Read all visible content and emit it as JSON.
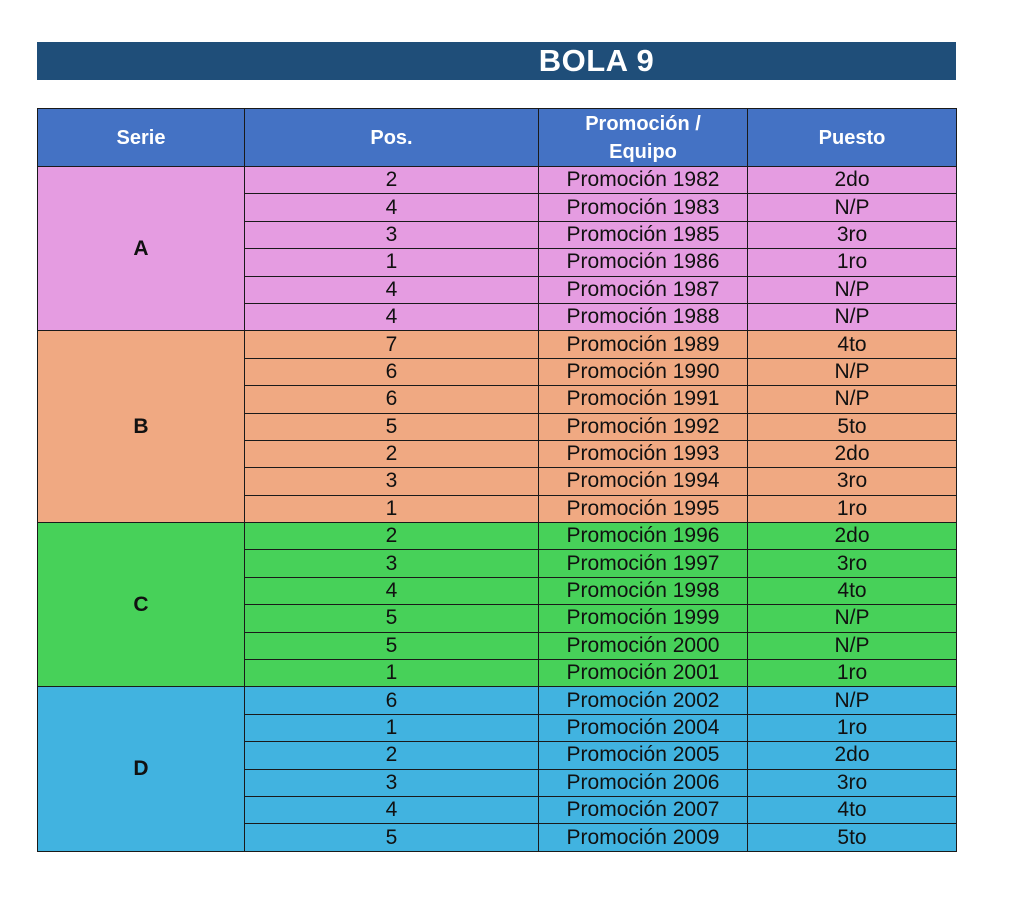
{
  "title": "BOLA 9",
  "headers": {
    "serie": "Serie",
    "pos": "Pos.",
    "promocion_line1": "Promoción /",
    "promocion_line2": "Equipo",
    "puesto": "Puesto"
  },
  "colors": {
    "title_bar": "#1f4e79",
    "header": "#4472c4",
    "serie_A": "#e59ce1",
    "serie_B": "#f0a982",
    "serie_C": "#47d159",
    "serie_D": "#41b3e0"
  },
  "groups": [
    {
      "serie": "A",
      "rows": [
        {
          "pos": "2",
          "promocion": "Promoción 1982",
          "puesto": "2do"
        },
        {
          "pos": "4",
          "promocion": "Promoción 1983",
          "puesto": "N/P"
        },
        {
          "pos": "3",
          "promocion": "Promoción 1985",
          "puesto": "3ro"
        },
        {
          "pos": "1",
          "promocion": "Promoción 1986",
          "puesto": "1ro"
        },
        {
          "pos": "4",
          "promocion": "Promoción 1987",
          "puesto": "N/P"
        },
        {
          "pos": "4",
          "promocion": "Promoción 1988",
          "puesto": "N/P"
        }
      ]
    },
    {
      "serie": "B",
      "rows": [
        {
          "pos": "7",
          "promocion": "Promoción 1989",
          "puesto": "4to"
        },
        {
          "pos": "6",
          "promocion": "Promoción 1990",
          "puesto": "N/P"
        },
        {
          "pos": "6",
          "promocion": "Promoción 1991",
          "puesto": "N/P"
        },
        {
          "pos": "5",
          "promocion": "Promoción 1992",
          "puesto": "5to"
        },
        {
          "pos": "2",
          "promocion": "Promoción 1993",
          "puesto": "2do"
        },
        {
          "pos": "3",
          "promocion": "Promoción 1994",
          "puesto": "3ro"
        },
        {
          "pos": "1",
          "promocion": "Promoción 1995",
          "puesto": "1ro"
        }
      ]
    },
    {
      "serie": "C",
      "rows": [
        {
          "pos": "2",
          "promocion": "Promoción 1996",
          "puesto": "2do"
        },
        {
          "pos": "3",
          "promocion": "Promoción 1997",
          "puesto": "3ro"
        },
        {
          "pos": "4",
          "promocion": "Promoción 1998",
          "puesto": "4to"
        },
        {
          "pos": "5",
          "promocion": "Promoción 1999",
          "puesto": "N/P"
        },
        {
          "pos": "5",
          "promocion": "Promoción 2000",
          "puesto": "N/P"
        },
        {
          "pos": "1",
          "promocion": "Promoción 2001",
          "puesto": "1ro"
        }
      ]
    },
    {
      "serie": "D",
      "rows": [
        {
          "pos": "6",
          "promocion": "Promoción 2002",
          "puesto": "N/P"
        },
        {
          "pos": "1",
          "promocion": "Promoción 2004",
          "puesto": "1ro"
        },
        {
          "pos": "2",
          "promocion": "Promoción 2005",
          "puesto": "2do"
        },
        {
          "pos": "3",
          "promocion": "Promoción 2006",
          "puesto": "3ro"
        },
        {
          "pos": "4",
          "promocion": "Promoción 2007",
          "puesto": "4to"
        },
        {
          "pos": "5",
          "promocion": "Promoción 2009",
          "puesto": "5to"
        }
      ]
    }
  ]
}
